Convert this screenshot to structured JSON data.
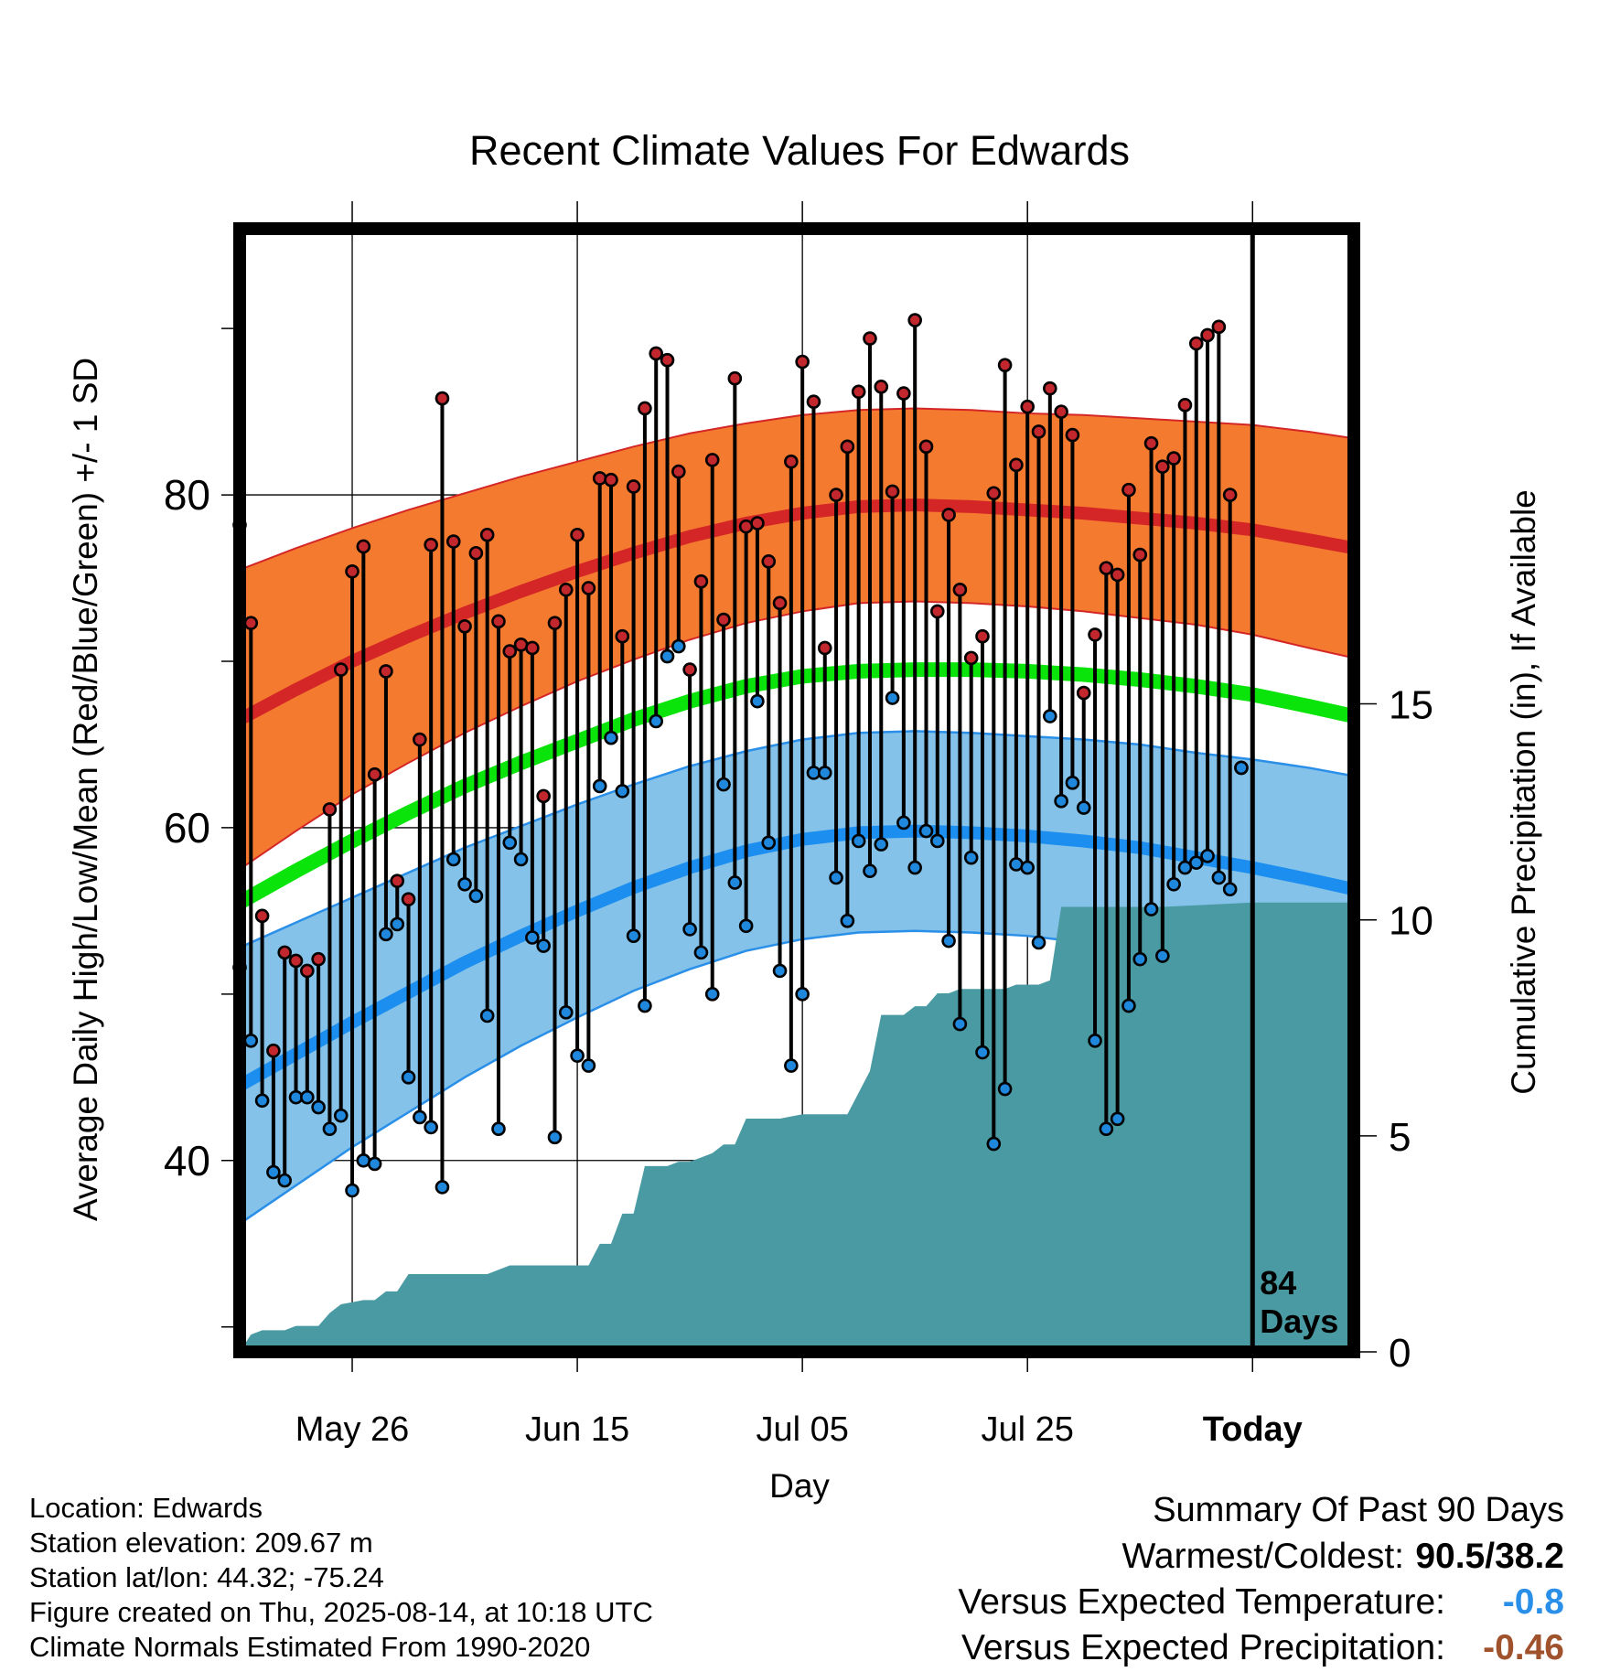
{
  "chart_data": {
    "type": "line",
    "title": "Recent Climate Values For Edwards",
    "xlabel": "Day",
    "ylabel": "Average Daily High/Low/Mean (Red/Blue/Green) +/- 1 SD",
    "y2label": "Cumulative Precipitation (in), If Available",
    "ylim": [
      28.5,
      96
    ],
    "y_ticks": [
      40,
      60,
      80
    ],
    "y2lim": [
      0,
      26
    ],
    "y2_ticks": [
      0,
      5,
      10,
      15
    ],
    "x_range": [
      -90,
      9
    ],
    "x_ticks": [
      {
        "day": -80,
        "label": "May 26"
      },
      {
        "day": -60,
        "label": "Jun 15"
      },
      {
        "day": -40,
        "label": "Jul 05"
      },
      {
        "day": -20,
        "label": "Jul 25"
      },
      {
        "day": 0,
        "label": "Today"
      }
    ],
    "today_annotation": [
      "84",
      "Days"
    ],
    "colors": {
      "high_band": "#f47a30",
      "high_line": "#d42626",
      "low_band": "#84c2e9",
      "low_line": "#1b8eef",
      "low_band_edge": "#2a8fe8",
      "mean_line": "#0ae40a",
      "precip_fill": "#4a9aa3",
      "high_point": "#c1272d",
      "low_point": "#1f88dd",
      "frame": "#000000"
    },
    "normals": {
      "day": [
        -90,
        -85,
        -80,
        -75,
        -70,
        -65,
        -60,
        -55,
        -50,
        -45,
        -40,
        -35,
        -30,
        -25,
        -20,
        -15,
        -10,
        -5,
        0,
        5,
        9
      ],
      "high_mean": [
        66.5,
        68.3,
        70.0,
        71.5,
        72.9,
        74.2,
        75.4,
        76.5,
        77.5,
        78.3,
        78.9,
        79.3,
        79.4,
        79.3,
        79.1,
        78.9,
        78.6,
        78.3,
        77.9,
        77.3,
        76.8
      ],
      "high_sd": [
        9.0,
        8.5,
        8.0,
        7.6,
        7.2,
        6.9,
        6.6,
        6.4,
        6.2,
        6.0,
        5.9,
        5.8,
        5.8,
        5.8,
        5.8,
        5.9,
        6.0,
        6.1,
        6.3,
        6.5,
        6.6
      ],
      "low_mean": [
        44.5,
        46.4,
        48.3,
        50.1,
        51.9,
        53.5,
        55.0,
        56.4,
        57.6,
        58.6,
        59.3,
        59.7,
        59.8,
        59.7,
        59.5,
        59.2,
        58.8,
        58.2,
        57.6,
        56.9,
        56.3
      ],
      "low_sd": [
        8.3,
        7.9,
        7.5,
        7.2,
        6.9,
        6.6,
        6.4,
        6.2,
        6.1,
        6.0,
        6.0,
        6.0,
        6.0,
        6.0,
        6.0,
        6.1,
        6.2,
        6.3,
        6.5,
        6.7,
        6.8
      ],
      "mean": [
        55.5,
        57.4,
        59.2,
        60.9,
        62.5,
        63.9,
        65.2,
        66.5,
        67.6,
        68.5,
        69.1,
        69.4,
        69.5,
        69.5,
        69.4,
        69.2,
        68.9,
        68.5,
        68.0,
        67.3,
        66.7
      ]
    },
    "observed": {
      "day": [
        -90,
        -89,
        -88,
        -87,
        -86,
        -85,
        -84,
        -83,
        -82,
        -81,
        -80,
        -79,
        -78,
        -77,
        -76,
        -75,
        -74,
        -73,
        -72,
        -71,
        -70,
        -69,
        -68,
        -67,
        -66,
        -65,
        -64,
        -63,
        -62,
        -61,
        -60,
        -59,
        -58,
        -57,
        -56,
        -55,
        -54,
        -53,
        -52,
        -51,
        -50,
        -49,
        -48,
        -47,
        -46,
        -45,
        -44,
        -43,
        -42,
        -41,
        -40,
        -39,
        -38,
        -37,
        -36,
        -35,
        -34,
        -33,
        -32,
        -31,
        -30,
        -29,
        -28,
        -27,
        -26,
        -25,
        -24,
        -23,
        -22,
        -21,
        -20,
        -19,
        -18,
        -17,
        -16,
        -15,
        -14,
        -13,
        -12,
        -11,
        -10,
        -9,
        -8,
        -7,
        -6,
        -5,
        -4,
        -3,
        -2,
        -1
      ],
      "high": [
        78.2,
        72.3,
        54.7,
        46.6,
        52.5,
        52.0,
        51.4,
        52.1,
        61.1,
        69.5,
        75.4,
        76.9,
        63.2,
        69.4,
        56.8,
        55.7,
        65.3,
        77.0,
        85.8,
        77.2,
        72.1,
        76.5,
        77.6,
        72.4,
        70.6,
        71.0,
        70.8,
        61.9,
        72.3,
        74.3,
        77.6,
        74.4,
        81.0,
        80.9,
        71.5,
        80.5,
        85.2,
        88.5,
        88.1,
        81.4,
        69.5,
        74.8,
        82.1,
        72.5,
        87.0,
        78.1,
        78.3,
        76.0,
        73.5,
        82.0,
        88.0,
        85.6,
        70.8,
        80.0,
        82.9,
        86.2,
        89.4,
        86.5,
        80.2,
        86.1,
        90.5,
        82.9,
        73.0,
        78.8,
        74.3,
        70.2,
        71.5,
        80.1,
        87.8,
        81.8,
        85.3,
        83.8,
        86.4,
        85.0,
        83.6,
        68.1,
        71.6,
        75.6,
        75.2,
        80.3,
        76.4,
        83.1,
        81.7,
        82.2,
        85.4,
        89.1,
        89.6,
        90.1,
        80.0,
        63.6
      ],
      "low": [
        51.6,
        47.2,
        43.6,
        39.3,
        38.8,
        43.8,
        43.8,
        43.2,
        41.9,
        42.7,
        38.2,
        40.0,
        39.8,
        53.6,
        54.2,
        45.0,
        42.6,
        42.0,
        38.4,
        58.1,
        56.6,
        55.9,
        48.7,
        41.9,
        59.1,
        58.1,
        53.4,
        52.9,
        41.4,
        48.9,
        46.3,
        45.7,
        62.5,
        65.4,
        62.2,
        53.5,
        49.3,
        66.4,
        70.3,
        70.9,
        53.9,
        52.5,
        50.0,
        62.6,
        56.7,
        54.1,
        67.6,
        59.1,
        51.4,
        45.7,
        50.0,
        63.3,
        63.3,
        57.0,
        54.4,
        59.2,
        57.4,
        59.0,
        67.8,
        60.3,
        57.6,
        59.8,
        59.2,
        53.2,
        48.2,
        58.2,
        46.5,
        41.0,
        44.3,
        57.8,
        57.6,
        53.1,
        66.7,
        61.6,
        62.7,
        61.2,
        47.2,
        41.9,
        42.5,
        49.3,
        52.1,
        55.1,
        52.3,
        56.6,
        57.6,
        57.9,
        58.3,
        57.0,
        56.3,
        63.6
      ]
    },
    "cumulative_precip": {
      "day": [
        -90,
        -89,
        -88,
        -86,
        -85,
        -83,
        -82,
        -81,
        -79,
        -78,
        -77,
        -76,
        -75,
        -74,
        -73,
        -68,
        -67,
        -66,
        -60,
        -59,
        -58,
        -57,
        -56,
        -55,
        -54,
        -53,
        -52,
        -51,
        -50,
        -49,
        -48,
        -47,
        -46,
        -45,
        -44,
        -42,
        -40,
        -38,
        -36,
        -34,
        -33,
        -32,
        -31,
        -30,
        -29,
        -28,
        -27,
        -26,
        -25,
        -23,
        -22,
        -21,
        -20,
        -19,
        -18,
        -17,
        -8,
        0,
        9
      ],
      "value": [
        0.0,
        0.4,
        0.5,
        0.5,
        0.6,
        0.6,
        0.9,
        1.1,
        1.2,
        1.2,
        1.4,
        1.4,
        1.8,
        1.8,
        1.8,
        1.8,
        1.9,
        2.0,
        2.0,
        2.0,
        2.5,
        2.5,
        3.2,
        3.2,
        4.3,
        4.3,
        4.3,
        4.4,
        4.4,
        4.5,
        4.6,
        4.8,
        4.8,
        5.4,
        5.4,
        5.4,
        5.5,
        5.5,
        5.5,
        6.5,
        7.8,
        7.8,
        7.8,
        8.0,
        8.0,
        8.3,
        8.3,
        8.4,
        8.4,
        8.4,
        8.4,
        8.5,
        8.5,
        8.5,
        8.6,
        10.3,
        10.3,
        10.4,
        10.4
      ]
    }
  },
  "footer": {
    "location": "Location: Edwards",
    "elevation": "Station elevation: 209.67 m",
    "latlon": "Station lat/lon: 44.32; -75.24",
    "created": "Figure created on Thu, 2025-08-14, at 10:18 UTC",
    "normals": "Climate Normals Estimated From 1990-2020"
  },
  "summary": {
    "title": "Summary Of Past 90 Days",
    "warm_cold_label": "Warmest/Coldest:",
    "warm_cold_value": "90.5/38.2",
    "temp_label": "Versus Expected Temperature:",
    "temp_value": "-0.8",
    "temp_color": "#2a8fe8",
    "precip_label": "Versus Expected Precipitation:",
    "precip_value": "-0.46",
    "precip_color": "#a0522d"
  }
}
